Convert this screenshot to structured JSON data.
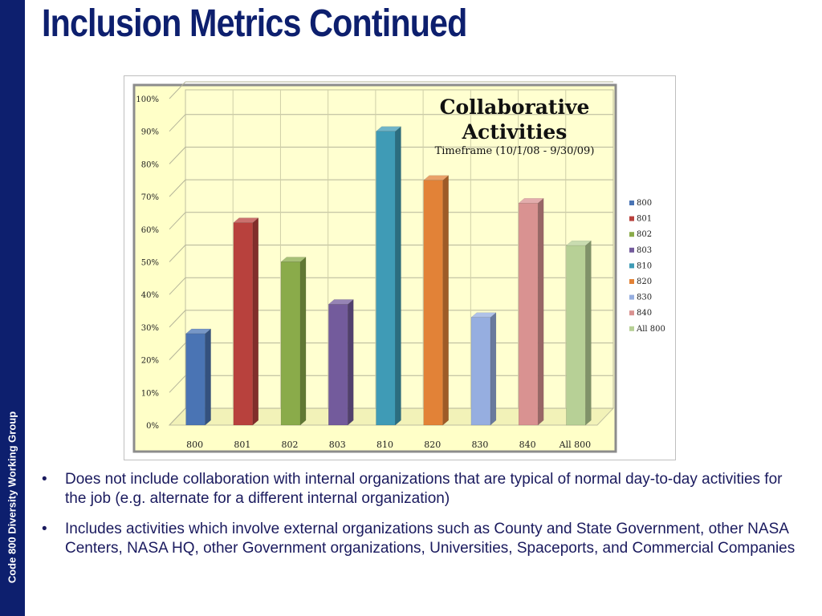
{
  "slide": {
    "title": "Inclusion Metrics Continued",
    "sidebar_label": "Code 800 Diversity Working Group",
    "bullets": [
      "Does not include collaboration with internal organizations that are typical of normal day-to-day activities for the job (e.g. alternate for a different internal organization)",
      "Includes activities which involve external organizations such as County and State Government, other NASA Centers, NASA HQ, other Government organizations, Universities, Spaceports, and Commercial Companies"
    ]
  },
  "chart_data": {
    "type": "bar",
    "title": "Collaborative Activities",
    "subtitle": "Timeframe (10/1/08 - 9/30/09)",
    "categories": [
      "800",
      "801",
      "802",
      "803",
      "810",
      "820",
      "830",
      "840",
      "All 800"
    ],
    "values": [
      28,
      62,
      50,
      37,
      90,
      75,
      33,
      68,
      55
    ],
    "colors": [
      "#4a74b4",
      "#b8413d",
      "#8aab4a",
      "#735b9c",
      "#3f9bb6",
      "#e28237",
      "#96aee0",
      "#d99291",
      "#b7d096"
    ],
    "ylim": [
      0,
      100
    ],
    "yticks": [
      "0%",
      "10%",
      "20%",
      "30%",
      "40%",
      "50%",
      "60%",
      "70%",
      "80%",
      "90%",
      "100%"
    ],
    "legend": [
      "800",
      "801",
      "802",
      "803",
      "810",
      "820",
      "830",
      "840",
      "All 800"
    ],
    "legend_position": "right",
    "grid": true,
    "background": "#ffffc8",
    "style": "3d"
  }
}
